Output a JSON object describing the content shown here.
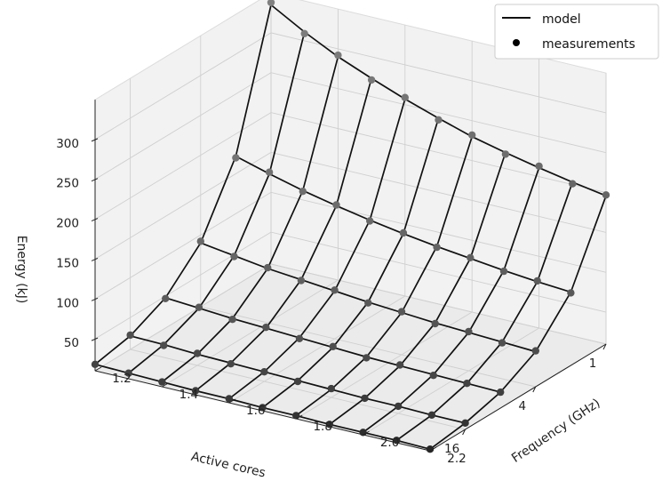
{
  "chart_data": {
    "type": "surface3d",
    "title": "",
    "axes": {
      "x": {
        "label": "Active cores",
        "scale": "log2",
        "ticks": [
          "1",
          "4",
          "16"
        ],
        "tick_values": [
          1,
          4,
          16
        ]
      },
      "y": {
        "label": "Frequency (GHz)",
        "ticks": [
          "1.2",
          "1.4",
          "1.6",
          "1.8",
          "2.0",
          "2.2"
        ],
        "tick_values": [
          1.2,
          1.4,
          1.6,
          1.8,
          2.0,
          2.2
        ]
      },
      "z": {
        "label": "Energy (kJ)",
        "ticks": [
          "50",
          "100",
          "150",
          "200",
          "250",
          "300"
        ],
        "tick_values": [
          50,
          100,
          150,
          200,
          250,
          300
        ],
        "range": [
          10,
          340
        ]
      }
    },
    "grid": true,
    "legend": {
      "position": "top-right",
      "entries": [
        {
          "label": "model",
          "marker": "line"
        },
        {
          "label": "measurements",
          "marker": "dot"
        }
      ]
    },
    "colors": {
      "surface_line": "#111111",
      "marker": "#000000",
      "pane": "#f2f2f2",
      "grid": "#cfcfcf"
    },
    "grid_points": {
      "cores": [
        1,
        2,
        4,
        8,
        16,
        32
      ],
      "frequency_ghz": [
        1.2,
        1.3,
        1.4,
        1.5,
        1.6,
        1.7,
        1.8,
        1.9,
        2.0,
        2.1,
        2.2
      ]
    },
    "model_energy_kj": [
      [
        335,
        172,
        90,
        48,
        27,
        18
      ],
      [
        311,
        160,
        84,
        45,
        26,
        17
      ],
      [
        290,
        149,
        78,
        42,
        24,
        16
      ],
      [
        273,
        140,
        74,
        40,
        23,
        15
      ],
      [
        257,
        132,
        70,
        38,
        22,
        15
      ],
      [
        243,
        125,
        66,
        36,
        21,
        14
      ],
      [
        230,
        119,
        63,
        34,
        20,
        14
      ],
      [
        220,
        114,
        60,
        33,
        19,
        13
      ],
      [
        211,
        109,
        58,
        32,
        19,
        13
      ],
      [
        203,
        105,
        56,
        31,
        18,
        13
      ],
      [
        196,
        102,
        54,
        30,
        18,
        12
      ]
    ],
    "measurements_energy_kj": [
      [
        338,
        170,
        92,
        47,
        28,
        18
      ],
      [
        309,
        162,
        83,
        46,
        25,
        17
      ],
      [
        292,
        148,
        79,
        41,
        25,
        16
      ],
      [
        271,
        141,
        73,
        41,
        22,
        15
      ],
      [
        259,
        131,
        71,
        37,
        22,
        15
      ],
      [
        241,
        126,
        65,
        37,
        20,
        14
      ],
      [
        232,
        118,
        64,
        33,
        21,
        14
      ],
      [
        218,
        115,
        59,
        34,
        19,
        13
      ],
      [
        213,
        108,
        59,
        31,
        19,
        13
      ],
      [
        201,
        106,
        55,
        31,
        18,
        13
      ],
      [
        197,
        101,
        55,
        30,
        18,
        12
      ]
    ]
  }
}
